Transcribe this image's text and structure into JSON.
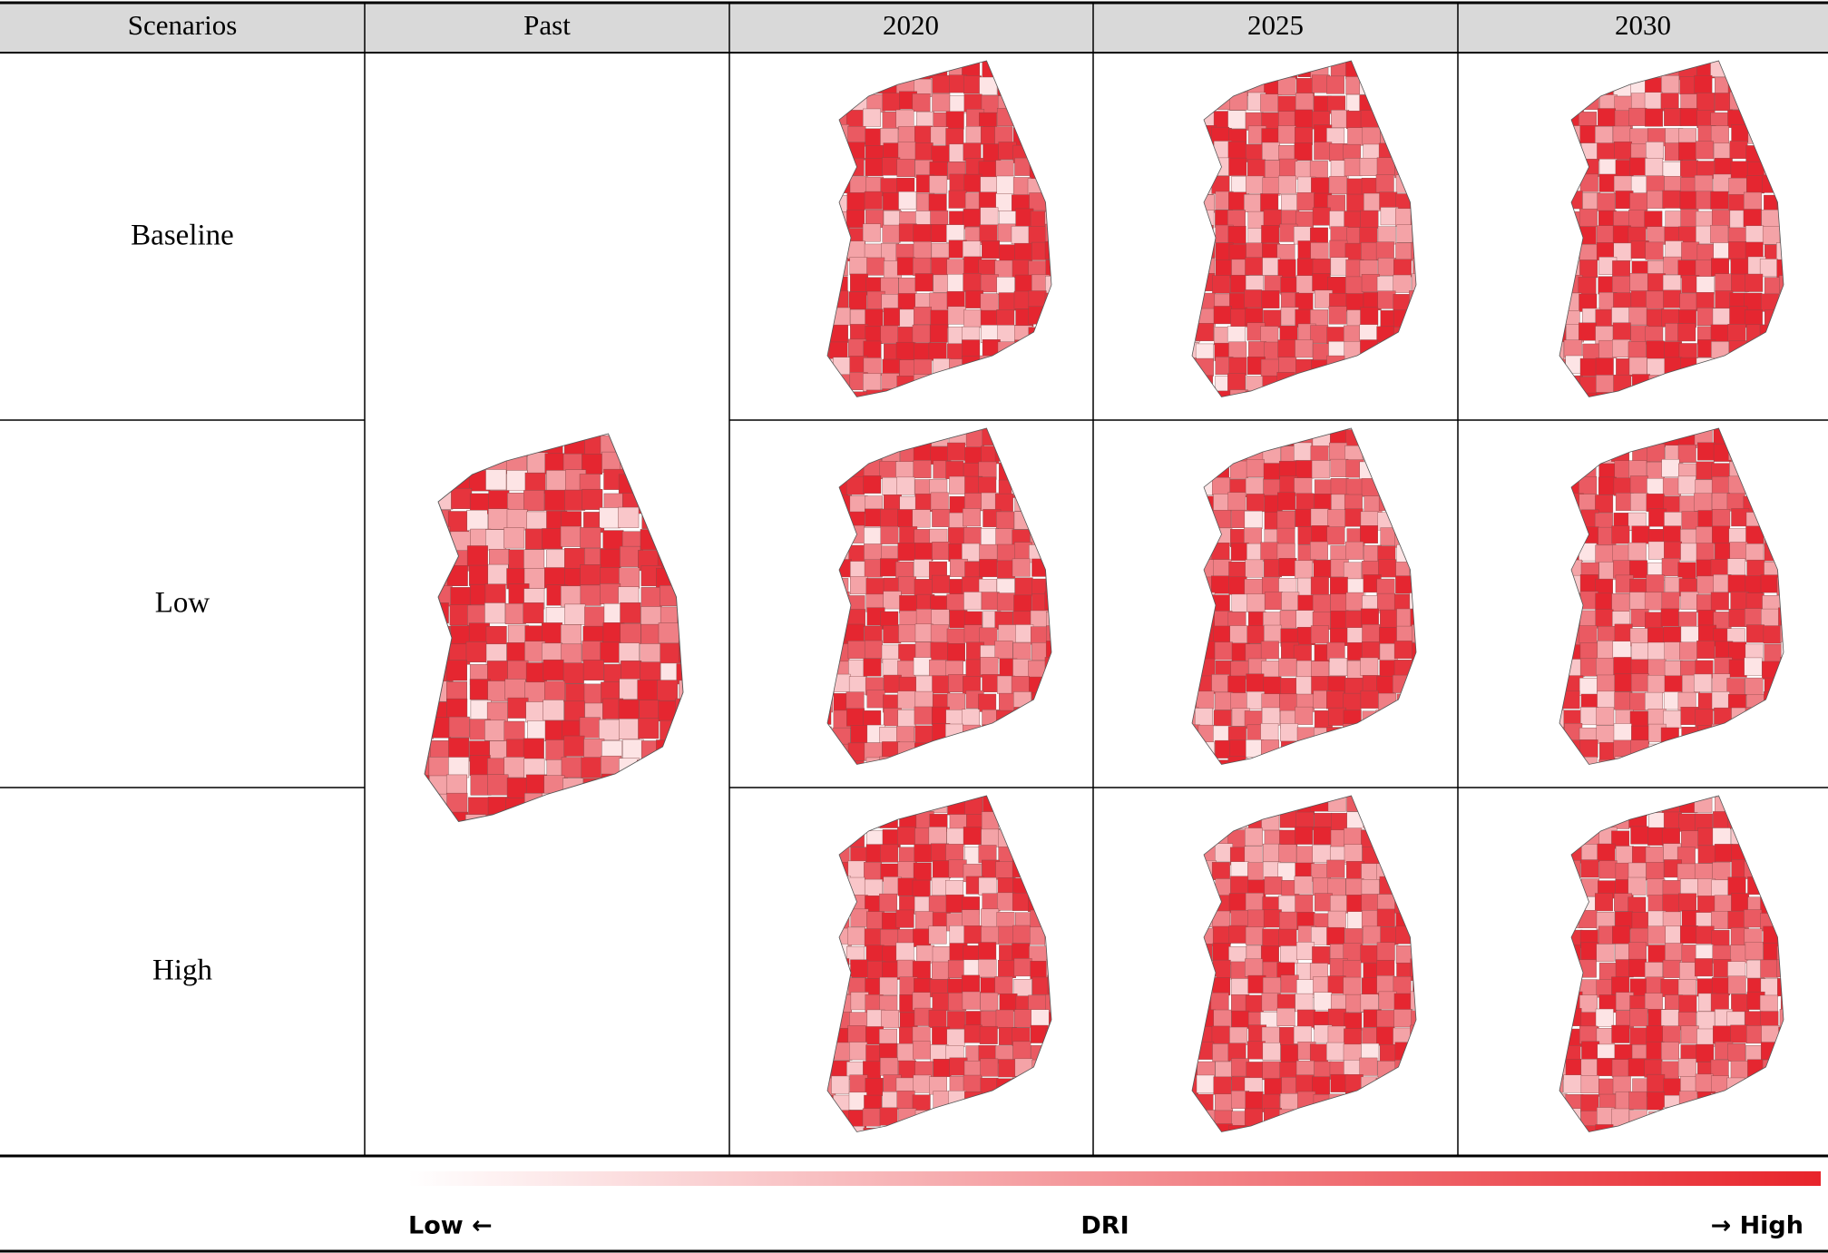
{
  "table": {
    "header": [
      "Scenarios",
      "Past",
      "2020",
      "2025",
      "2030"
    ],
    "rows": [
      "Baseline",
      "Low",
      "High"
    ]
  },
  "legend": {
    "low": "Low ←",
    "label": "DRI",
    "high": "→ High"
  }
}
